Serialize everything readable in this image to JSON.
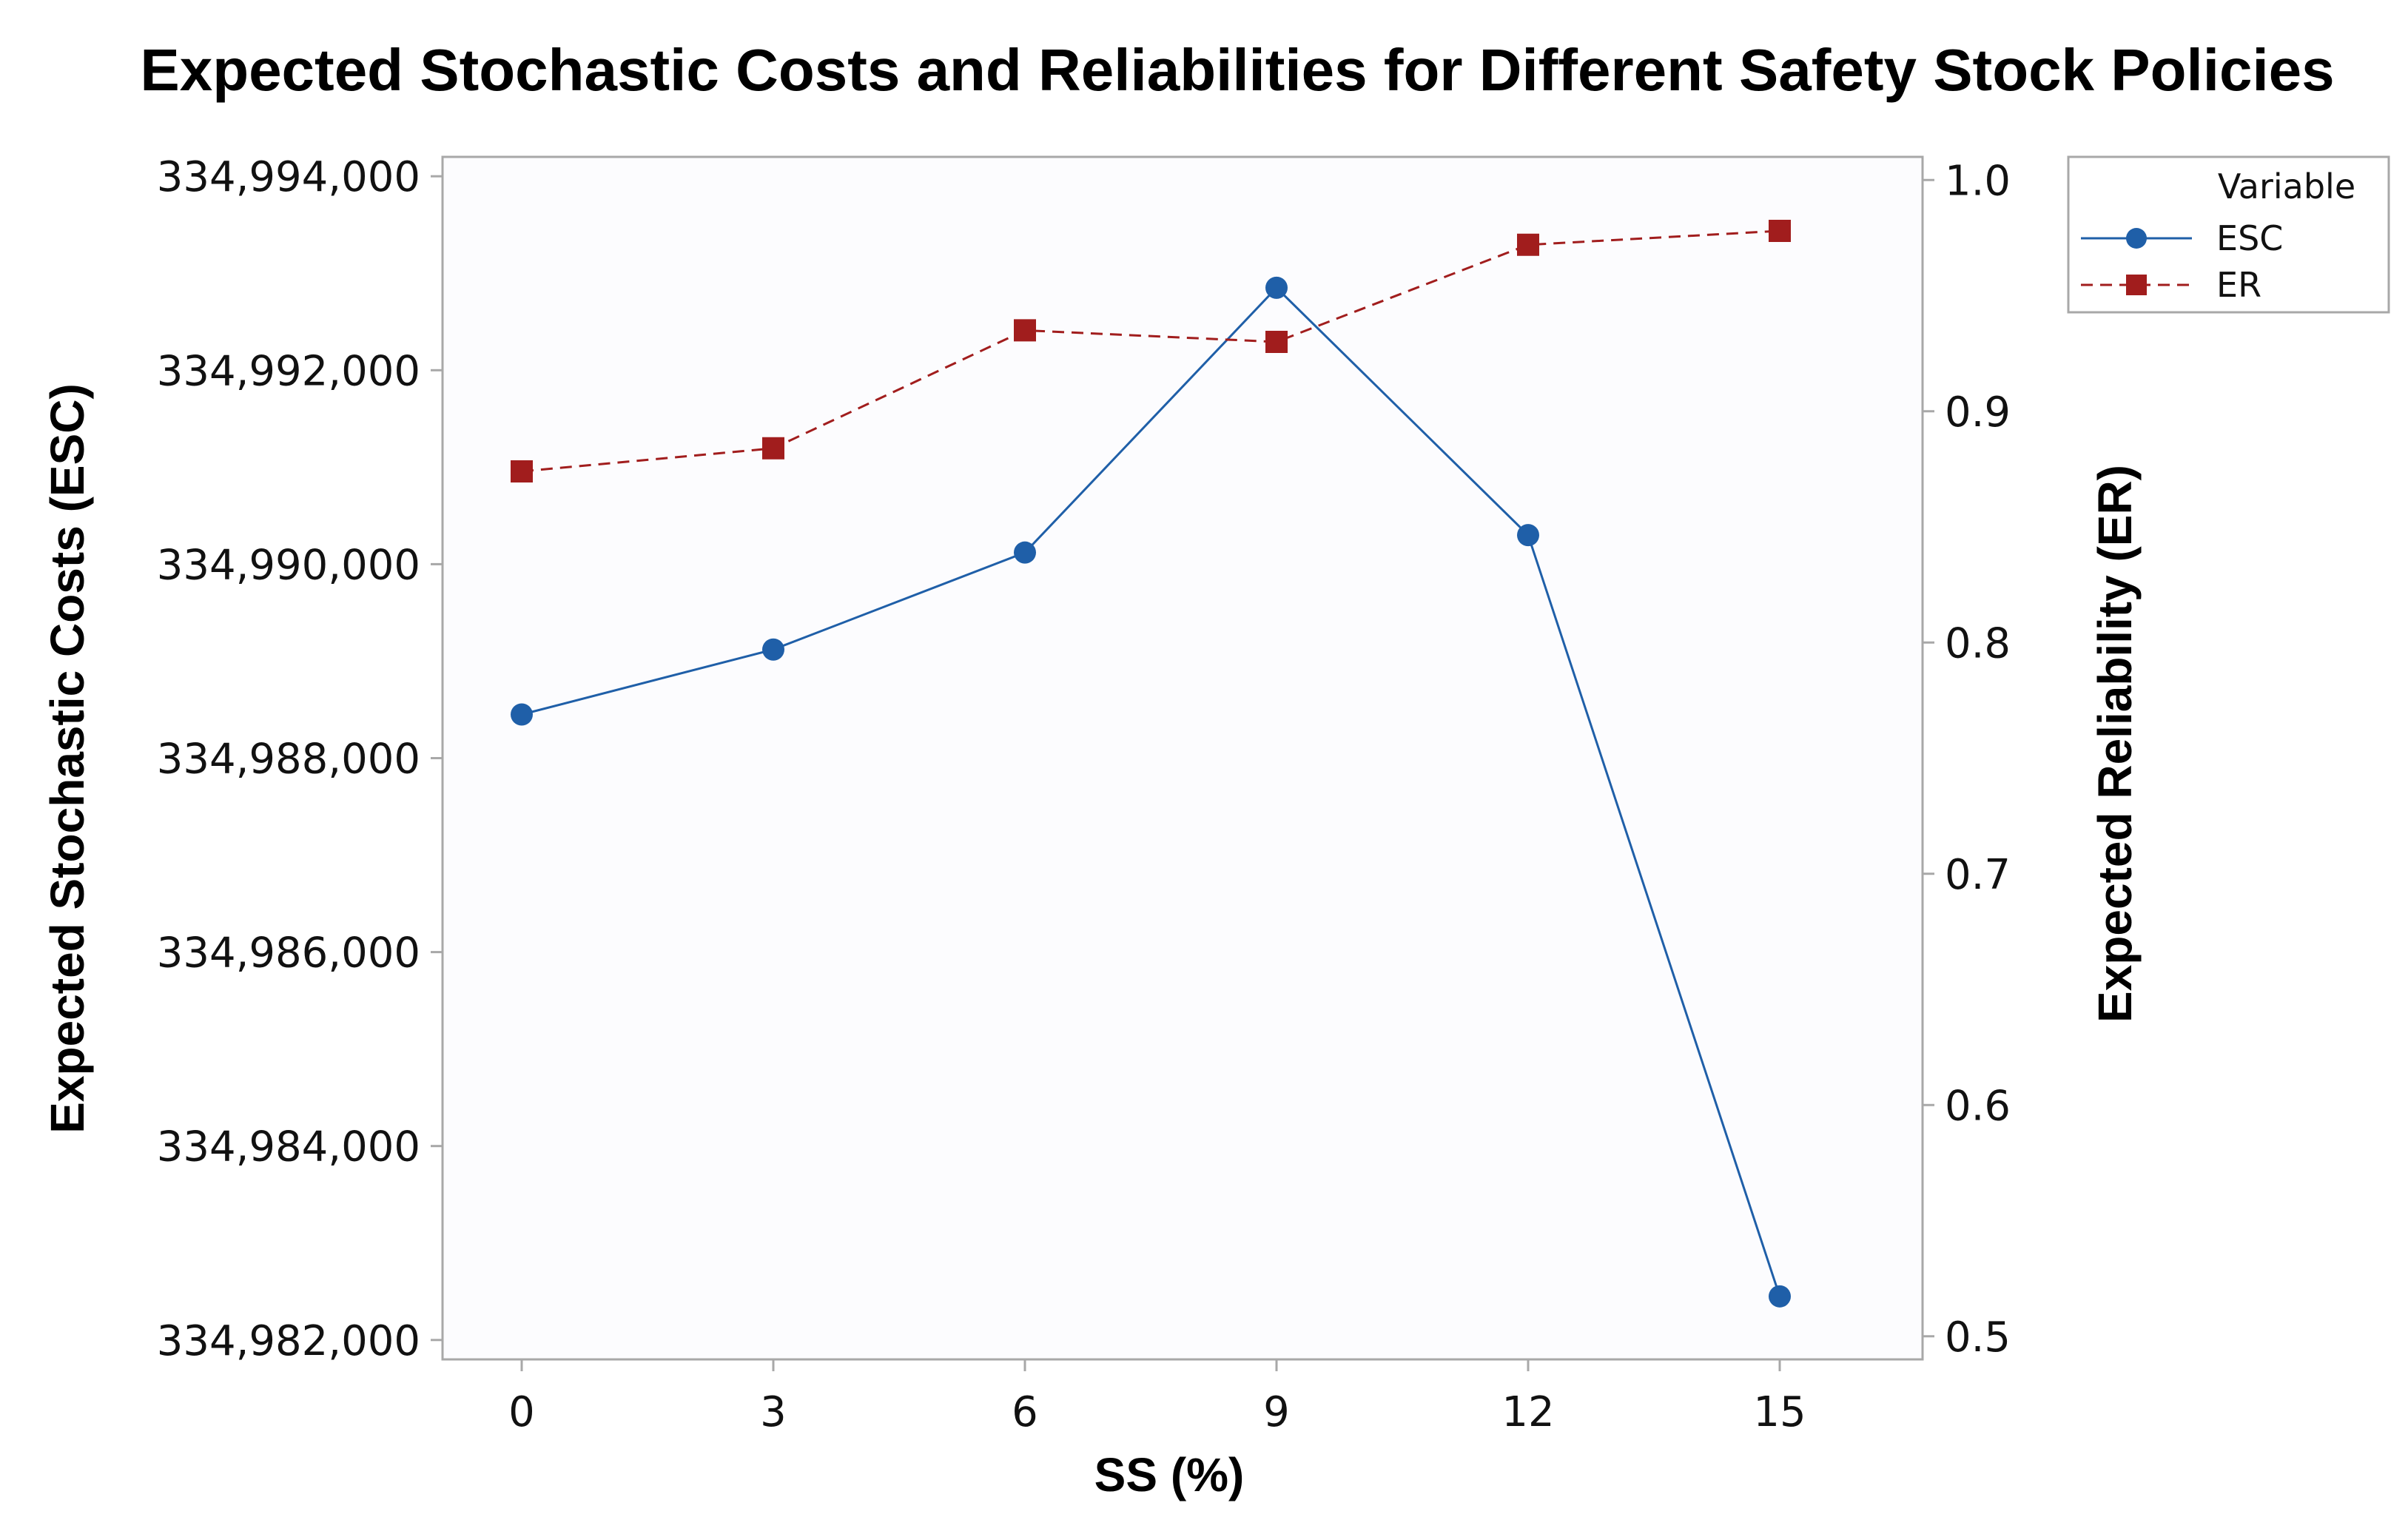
{
  "chart_data": {
    "type": "line",
    "title": "Expected Stochastic Costs and Reliabilities for Different Safety Stock Policies",
    "xlabel": "SS (%)",
    "ylabel_left": "Expected Stochastic Costs (ESC)",
    "ylabel_right": "Expected Reliability (ER)",
    "x": [
      0,
      3,
      6,
      9,
      12,
      15
    ],
    "x_tick_labels": [
      "0",
      "3",
      "6",
      "9",
      "12",
      "15"
    ],
    "ylim_left": [
      334981800,
      334994200
    ],
    "yticks_left": [
      334982000,
      334984000,
      334986000,
      334988000,
      334990000,
      334992000,
      334994000
    ],
    "ytick_labels_left": [
      "334,982,000",
      "334,984,000",
      "334,986,000",
      "334,988,000",
      "334,990,000",
      "334,992,000",
      "334,994,000"
    ],
    "ylim_right": [
      0.49,
      1.01
    ],
    "yticks_right": [
      0.5,
      0.6,
      0.7,
      0.8,
      0.9,
      1.0
    ],
    "ytick_labels_right": [
      "0.5",
      "0.6",
      "0.7",
      "0.8",
      "0.9",
      "1.0"
    ],
    "series": [
      {
        "name": "ESC",
        "axis": "left",
        "color": "#1f5fa8",
        "line_style": "solid",
        "marker": "circle",
        "values": [
          334988450,
          334989120,
          334990120,
          334992850,
          334990300,
          334982450
        ]
      },
      {
        "name": "ER",
        "axis": "right",
        "color": "#a11d1d",
        "line_style": "dashed",
        "marker": "square",
        "values": [
          0.874,
          0.884,
          0.935,
          0.93,
          0.972,
          0.978
        ]
      }
    ],
    "legend": {
      "title": "Variable",
      "position": "top-right, outside plot"
    },
    "grid": false
  }
}
